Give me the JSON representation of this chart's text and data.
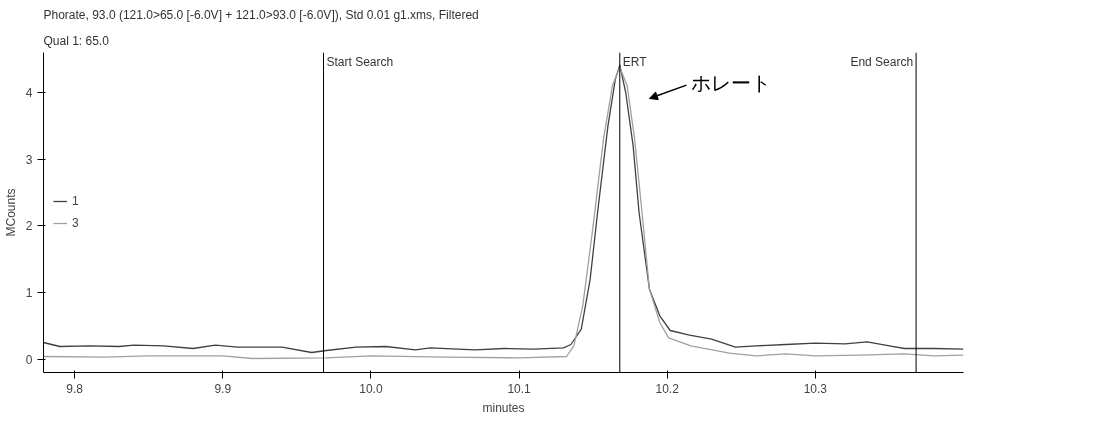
{
  "chart_data": {
    "type": "line",
    "title": "Phorate, 93.0 (121.0>65.0 [-6.0V] + 121.0>93.0 [-6.0V]), Std 0.01 g1.xms, Filtered",
    "subtitle": "Qual 1: 65.0",
    "xlabel": "minutes",
    "ylabel": "MCounts",
    "xlim": [
      9.779,
      10.4
    ],
    "ylim": [
      -0.2,
      4.6
    ],
    "xticks": [
      {
        "value": 9.8,
        "label": "9.8"
      },
      {
        "value": 9.9,
        "label": "9.9"
      },
      {
        "value": 10.0,
        "label": "10.0"
      },
      {
        "value": 10.1,
        "label": "10.1"
      },
      {
        "value": 10.2,
        "label": "10.2"
      },
      {
        "value": 10.3,
        "label": "10.3"
      }
    ],
    "yticks": [
      0,
      1,
      2,
      3,
      4
    ],
    "grid": false,
    "legend": "left",
    "line_style": "solid",
    "marker": "none",
    "series": [
      {
        "name": "1",
        "color": "#404040",
        "x": [
          9.779,
          9.79,
          9.81,
          9.83,
          9.84,
          9.86,
          9.88,
          9.895,
          9.91,
          9.94,
          9.96,
          9.97,
          9.99,
          10.01,
          10.03,
          10.04,
          10.07,
          10.09,
          10.11,
          10.13,
          10.135,
          10.142,
          10.148,
          10.153,
          10.16,
          10.165,
          10.168,
          10.172,
          10.177,
          10.181,
          10.188,
          10.195,
          10.202,
          10.215,
          10.23,
          10.246,
          10.26,
          10.28,
          10.3,
          10.32,
          10.335,
          10.35,
          10.36,
          10.38,
          10.4
        ],
        "values": [
          0.25,
          0.19,
          0.2,
          0.19,
          0.21,
          0.2,
          0.16,
          0.21,
          0.18,
          0.18,
          0.1,
          0.13,
          0.18,
          0.19,
          0.14,
          0.17,
          0.14,
          0.16,
          0.15,
          0.17,
          0.22,
          0.45,
          1.2,
          2.2,
          3.5,
          4.2,
          4.41,
          4.0,
          3.2,
          2.2,
          1.05,
          0.65,
          0.43,
          0.36,
          0.3,
          0.18,
          0.2,
          0.22,
          0.24,
          0.23,
          0.26,
          0.2,
          0.16,
          0.16,
          0.15
        ]
      },
      {
        "name": "3",
        "color": "#a0a0a0",
        "x": [
          9.779,
          9.82,
          9.85,
          9.9,
          9.92,
          9.97,
          10.0,
          10.05,
          10.1,
          10.132,
          10.137,
          10.143,
          10.15,
          10.157,
          10.163,
          10.168,
          10.173,
          10.178,
          10.183,
          10.188,
          10.195,
          10.201,
          10.216,
          10.242,
          10.26,
          10.28,
          10.3,
          10.33,
          10.36,
          10.38,
          10.4
        ],
        "values": [
          0.04,
          0.03,
          0.05,
          0.05,
          0.01,
          0.02,
          0.05,
          0.03,
          0.02,
          0.04,
          0.2,
          0.8,
          2.0,
          3.3,
          4.1,
          4.38,
          4.1,
          3.3,
          2.2,
          1.05,
          0.55,
          0.32,
          0.2,
          0.09,
          0.05,
          0.08,
          0.05,
          0.06,
          0.08,
          0.05,
          0.06
        ]
      }
    ],
    "ref_lines": [
      {
        "axis": "x",
        "value": 9.968,
        "label": "Start Search",
        "color": "#000000"
      },
      {
        "axis": "x",
        "value": 10.168,
        "label": "ERT",
        "color": "#000000"
      },
      {
        "axis": "x",
        "value": 10.368,
        "label": "End Search",
        "color": "#000000"
      }
    ],
    "annotations": [
      "ホレート"
    ]
  }
}
